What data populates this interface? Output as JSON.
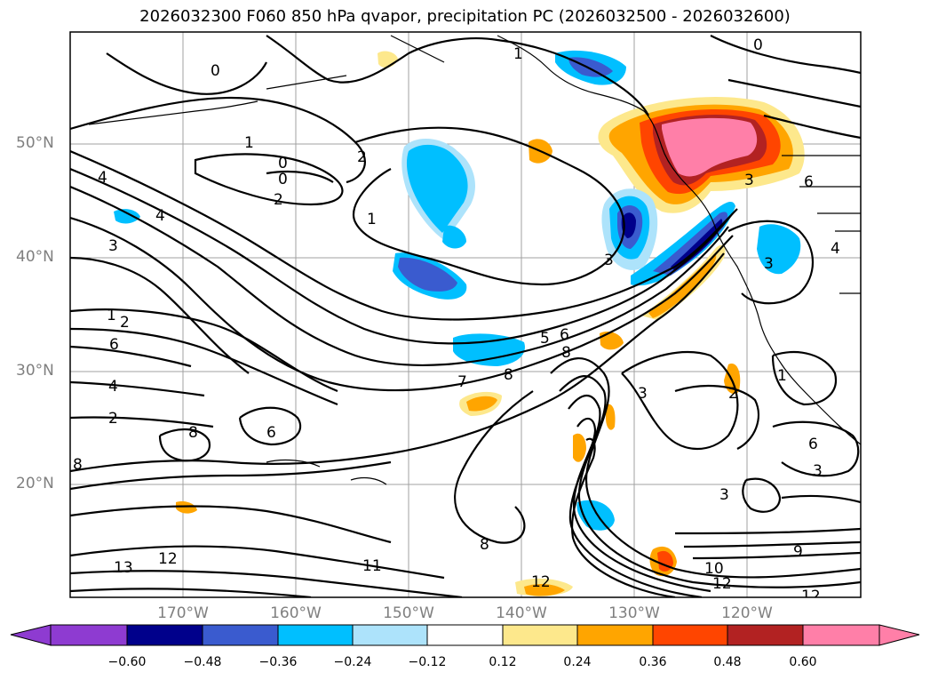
{
  "title": "2026032300 F060 850 hPa qvapor, precipitation PC (2026032500 - 2026032600)",
  "map": {
    "lat_labels": [
      "50°N",
      "40°N",
      "30°N",
      "20°N"
    ],
    "lon_labels": [
      "170°W",
      "160°W",
      "150°W",
      "140°W",
      "130°W",
      "120°W"
    ],
    "contour_labels": [
      "0",
      "1",
      "1",
      "0",
      "2",
      "4",
      "4",
      "0",
      "2",
      "1",
      "3",
      "2",
      "1",
      "6",
      "4",
      "2",
      "8",
      "6",
      "7",
      "8",
      "5",
      "6",
      "3",
      "8",
      "3",
      "12",
      "11",
      "13",
      "12",
      "12",
      "10",
      "9",
      "3",
      "1",
      "2",
      "6",
      "3",
      "4",
      "3",
      "6",
      "3",
      "12",
      "8",
      "8",
      "0"
    ]
  },
  "colorbar": {
    "ticks": [
      "−0.60",
      "−0.48",
      "−0.36",
      "−0.24",
      "−0.12",
      "0.12",
      "0.24",
      "0.36",
      "0.48",
      "0.60"
    ],
    "colors": [
      "#8e3bd1",
      "#00008b",
      "#3a5bcf",
      "#00bfff",
      "#ade3fb",
      "#ffffff",
      "#fde88c",
      "#ffa500",
      "#ff4500",
      "#b22222",
      "#ff7fa8"
    ]
  }
}
